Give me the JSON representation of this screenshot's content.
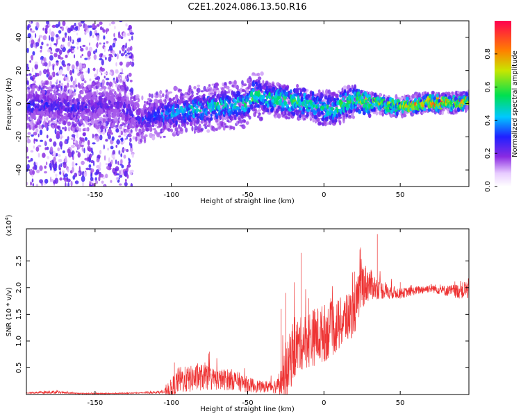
{
  "figure": {
    "title": "C2E1.2024.086.13.50.R16"
  },
  "chart_data": [
    {
      "type": "heatmap",
      "xlabel": "Height of straight line (km)",
      "ylabel": "Frequency (Hz)",
      "xlim": [
        -195,
        95
      ],
      "ylim": [
        -50,
        50
      ],
      "xticks": [
        -150,
        -100,
        -50,
        0,
        50
      ],
      "yticks": [
        -40,
        -20,
        0,
        20,
        40
      ],
      "colorbar": {
        "label": "Normalized spectral amplitude",
        "range": [
          0.0,
          1.0
        ],
        "ticks": [
          0.0,
          0.2,
          0.4,
          0.6,
          0.8
        ],
        "colormap": "rainbow (white-violet-blue-cyan-green-yellow-red)"
      },
      "ridge": {
        "description": "main spectral ridge near 0 Hz, centre frequency by height",
        "x": [
          -195,
          -180,
          -165,
          -150,
          -135,
          -120,
          -100,
          -80,
          -60,
          -50,
          -45,
          -40,
          -30,
          -20,
          -10,
          0,
          10,
          20,
          30,
          40,
          50,
          60,
          70,
          80,
          90,
          95
        ],
        "center_freq": [
          -2,
          0,
          -3,
          -1,
          0,
          -10,
          -5,
          -3,
          -1,
          0,
          6,
          4,
          2,
          1,
          0,
          -3,
          -2,
          2,
          1,
          -1,
          -2,
          0,
          1,
          0,
          1,
          2
        ],
        "peak_amplitude": [
          0.35,
          0.3,
          0.3,
          0.25,
          0.25,
          0.3,
          0.45,
          0.5,
          0.55,
          0.55,
          0.6,
          0.55,
          0.6,
          0.6,
          0.55,
          0.55,
          0.6,
          0.65,
          0.7,
          0.75,
          0.8,
          0.85,
          0.9,
          0.9,
          0.85,
          0.8
        ]
      },
      "noise_region": {
        "x_range": [
          -195,
          -125
        ],
        "freq_range": [
          -50,
          50
        ],
        "typical_amplitude": 0.2
      }
    },
    {
      "type": "line",
      "xlabel": "Height of straight line (km)",
      "ylabel": "SNR (10 * v/v)",
      "y_exponent_label": "(x10",
      "y_exponent_value": "4",
      "y_exponent_close": ")",
      "xlim": [
        -195,
        95
      ],
      "ylim": [
        0,
        3.1
      ],
      "xticks": [
        -150,
        -100,
        -50,
        0,
        50
      ],
      "yticks": [
        0.5,
        1.0,
        1.5,
        2.0,
        2.5
      ],
      "color": "#ee3333",
      "series": [
        {
          "x": [
            -195,
            -180,
            -160,
            -140,
            -120,
            -105,
            -100,
            -95,
            -90,
            -80,
            -70,
            -60,
            -50,
            -40,
            -30,
            -25,
            -20,
            -15,
            -10,
            0,
            10,
            20,
            25,
            30,
            35,
            40,
            50,
            60,
            70,
            80,
            90,
            95
          ],
          "y": [
            0.03,
            0.05,
            0.02,
            0.02,
            0.03,
            0.05,
            0.12,
            0.3,
            0.3,
            0.35,
            0.3,
            0.3,
            0.2,
            0.15,
            0.18,
            0.4,
            0.9,
            1.0,
            1.1,
            1.2,
            1.35,
            1.6,
            2.1,
            2.1,
            2.0,
            1.95,
            1.9,
            1.95,
            2.0,
            1.95,
            1.95,
            2.0
          ],
          "jitter": [
            0.01,
            0.03,
            0.01,
            0.01,
            0.01,
            0.03,
            0.2,
            0.25,
            0.25,
            0.25,
            0.2,
            0.2,
            0.15,
            0.1,
            0.15,
            0.5,
            0.6,
            0.5,
            0.55,
            0.55,
            0.5,
            0.45,
            0.45,
            0.3,
            0.2,
            0.15,
            0.1,
            0.08,
            0.08,
            0.1,
            0.15,
            0.2
          ],
          "spikes": [
            {
              "x": -28,
              "y": 1.6
            },
            {
              "x": -25,
              "y": 1.9
            },
            {
              "x": -15,
              "y": 2.65
            },
            {
              "x": -10,
              "y": 1.8
            },
            {
              "x": 20,
              "y": 2.3
            },
            {
              "x": 24,
              "y": 2.75
            },
            {
              "x": 35,
              "y": 3.0
            },
            {
              "x": 50,
              "y": 2.1
            },
            {
              "x": 95,
              "y": 2.1
            },
            {
              "x": -98,
              "y": 0.6
            },
            {
              "x": -75,
              "y": 0.8
            },
            {
              "x": -78,
              "y": 0.6
            }
          ]
        }
      ]
    }
  ]
}
